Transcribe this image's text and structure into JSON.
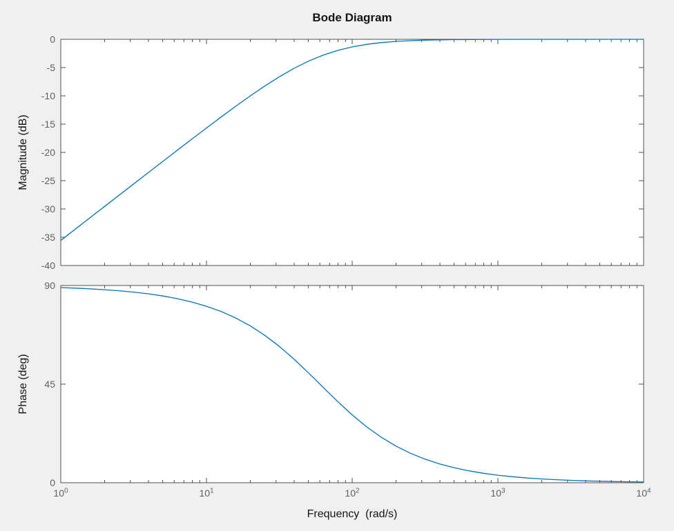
{
  "figure": {
    "background": "#f0f0f0",
    "plot_background": "#ffffff",
    "axis_color": "#4f4f4f",
    "tick_label_color": "#5f5f5f",
    "text_color": "#141414"
  },
  "chart_data": {
    "type": "line",
    "title": "Bode Diagram",
    "xlabel": "Frequency  (rad/s)",
    "x_scale": "log",
    "x_range": [
      1,
      10000
    ],
    "x_tick_base": "10",
    "x_tick_exponents": [
      0,
      1,
      2,
      3,
      4
    ],
    "grid": "off",
    "legend": "none",
    "line_color": "#0072BD",
    "x": [
      1,
      1.26,
      1.58,
      2,
      2.51,
      3.16,
      3.98,
      5.01,
      6.31,
      7.94,
      10,
      12.6,
      15.8,
      20,
      25.1,
      31.6,
      39.8,
      50.1,
      63.1,
      79.4,
      100,
      126,
      158,
      200,
      251,
      316,
      398,
      501,
      631,
      794,
      1000,
      1259,
      1585,
      1995,
      2512,
      3162,
      3981,
      5012,
      6310,
      7943,
      10000
    ],
    "subplots": [
      {
        "name": "magnitude",
        "ylabel": "Magnitude (dB)",
        "ylim": [
          -40,
          0
        ],
        "yticks": [
          0,
          -5,
          -10,
          -15,
          -20,
          -25,
          -30,
          -35,
          -40
        ],
        "values": [
          -35.57,
          -33.56,
          -31.59,
          -29.55,
          -27.58,
          -25.58,
          -23.58,
          -21.6,
          -19.61,
          -17.64,
          -15.68,
          -13.74,
          -11.88,
          -10.0,
          -8.27,
          -6.63,
          -5.15,
          -3.86,
          -2.8,
          -1.96,
          -1.34,
          -0.89,
          -0.59,
          -0.37,
          -0.24,
          -0.15,
          -0.1,
          -0.06,
          -0.04,
          -0.02,
          -0.016,
          -0.01,
          -0.006,
          -0.004,
          -0.002,
          -0.002,
          -0.001,
          -0.001,
          0,
          0,
          0
        ]
      },
      {
        "name": "phase",
        "ylabel": "Phase (deg)",
        "ylim": [
          0,
          90
        ],
        "yticks": [
          90,
          45,
          0
        ],
        "values": [
          89.05,
          88.8,
          88.49,
          88.09,
          87.6,
          86.99,
          86.21,
          85.23,
          84.0,
          82.46,
          80.54,
          78.14,
          75.25,
          71.57,
          67.29,
          62.23,
          56.45,
          50.13,
          43.56,
          37.08,
          30.96,
          25.46,
          20.79,
          16.7,
          13.44,
          10.75,
          8.57,
          6.83,
          5.43,
          4.32,
          3.43,
          2.73,
          2.17,
          1.72,
          1.37,
          1.09,
          0.86,
          0.69,
          0.54,
          0.43,
          0.34
        ]
      }
    ]
  }
}
